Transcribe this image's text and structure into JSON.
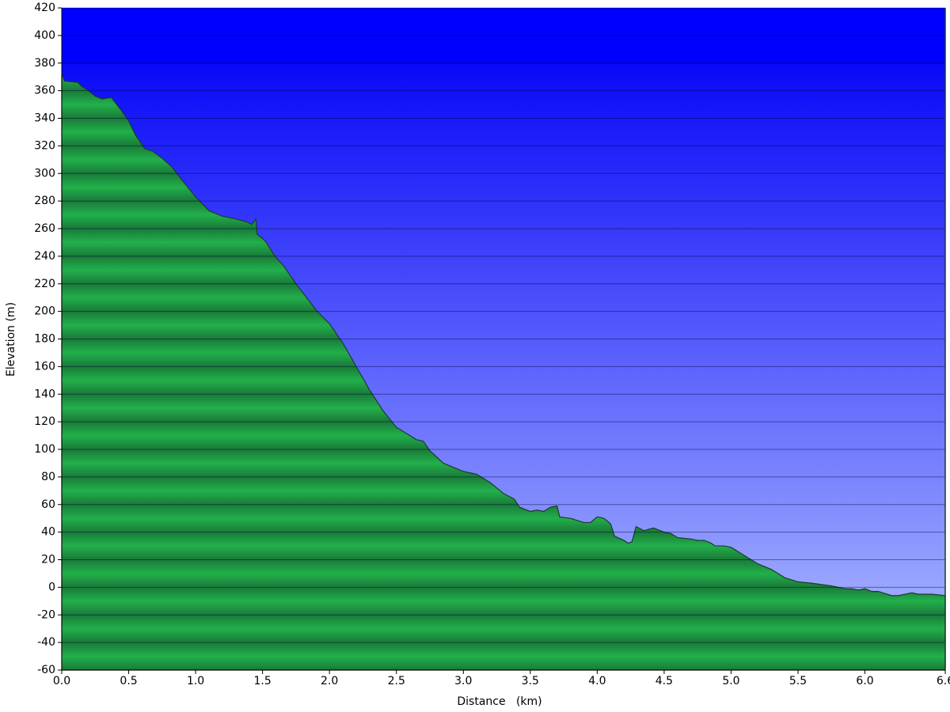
{
  "chart_data": {
    "type": "area",
    "x_label": "Distance   (km)",
    "y_label": "Elevation (m)",
    "color": "#22b04b",
    "grid": true,
    "x": [
      0.0,
      0.02,
      0.12,
      0.15,
      0.2,
      0.25,
      0.3,
      0.37,
      0.45,
      0.5,
      0.55,
      0.62,
      0.68,
      0.75,
      0.82,
      0.9,
      1.0,
      1.1,
      1.2,
      1.3,
      1.38,
      1.42,
      1.45,
      1.46,
      1.52,
      1.6,
      1.65,
      1.75,
      1.9,
      2.0,
      2.1,
      2.2,
      2.3,
      2.4,
      2.5,
      2.6,
      2.65,
      2.7,
      2.75,
      2.85,
      2.95,
      3.0,
      3.1,
      3.2,
      3.3,
      3.38,
      3.42,
      3.5,
      3.55,
      3.6,
      3.65,
      3.7,
      3.72,
      3.8,
      3.9,
      3.95,
      4.0,
      4.05,
      4.1,
      4.13,
      4.2,
      4.23,
      4.26,
      4.29,
      4.35,
      4.42,
      4.5,
      4.55,
      4.6,
      4.7,
      4.75,
      4.8,
      4.85,
      4.88,
      4.95,
      5.0,
      5.1,
      5.2,
      5.3,
      5.4,
      5.5,
      5.6,
      5.75,
      5.85,
      5.9,
      5.95,
      6.0,
      6.05,
      6.1,
      6.2,
      6.25,
      6.3,
      6.35,
      6.4,
      6.5,
      6.6
    ],
    "series": [
      {
        "name": "Elevation",
        "color": "#22b04b",
        "values": [
          372,
          367,
          366,
          363,
          360,
          356,
          354,
          355,
          345,
          338,
          328,
          318,
          316,
          311,
          305,
          295,
          283,
          273,
          269,
          267,
          265,
          263,
          267,
          256,
          251,
          239,
          234,
          220,
          201,
          191,
          177,
          160,
          143,
          128,
          116,
          110,
          107,
          106,
          99,
          90,
          86,
          84,
          82,
          76,
          68,
          64,
          58,
          55,
          56,
          55,
          58,
          59,
          51,
          50,
          47,
          47,
          51,
          50,
          46,
          37,
          34,
          32,
          33,
          44,
          41,
          43,
          40,
          39,
          36,
          35,
          34,
          34,
          32,
          30,
          30,
          29,
          23,
          17,
          13,
          7,
          4,
          3,
          1,
          -1,
          -1,
          -2,
          -1,
          -3,
          -3,
          -6,
          -6,
          -5,
          -4,
          -5,
          -5,
          -6
        ]
      }
    ],
    "xlim": [
      0,
      6.6
    ],
    "xticks": [
      {
        "value": 0,
        "label": "0.0"
      },
      0.5,
      {
        "value": 1,
        "label": "1.0"
      },
      1.5,
      {
        "value": 2,
        "label": "2.0"
      },
      2.5,
      {
        "value": 3,
        "label": "3.0"
      },
      3.5,
      {
        "value": 4,
        "label": "4.0"
      },
      4.5,
      {
        "value": 5,
        "label": "5.0"
      },
      5.5,
      {
        "value": 6,
        "label": "6.0"
      },
      6.6
    ],
    "ylim": [
      -60,
      420
    ],
    "yticks": [
      -60,
      -40,
      -20,
      0,
      20,
      40,
      60,
      80,
      100,
      120,
      140,
      160,
      180,
      200,
      220,
      240,
      260,
      280,
      300,
      320,
      340,
      360,
      380,
      400,
      420
    ]
  }
}
